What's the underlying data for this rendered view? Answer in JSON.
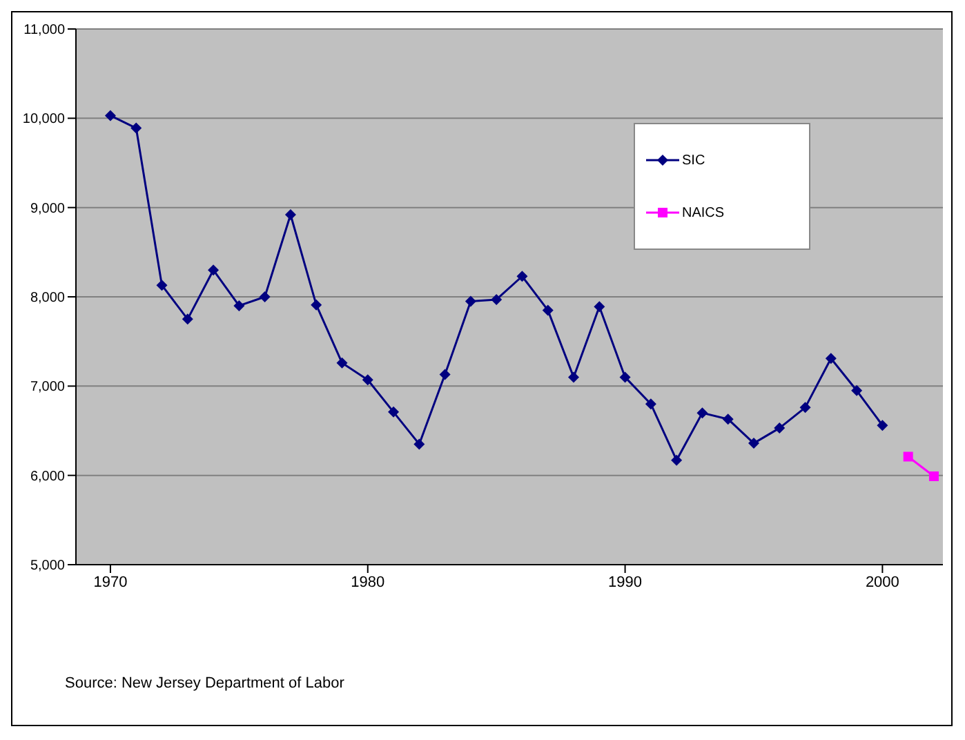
{
  "chart_data": {
    "type": "line",
    "series": [
      {
        "name": "SIC",
        "color": "#000080",
        "marker": "diamond",
        "x": [
          1970,
          1971,
          1972,
          1973,
          1974,
          1975,
          1976,
          1977,
          1978,
          1979,
          1980,
          1981,
          1982,
          1983,
          1984,
          1985,
          1986,
          1987,
          1988,
          1989,
          1990,
          1991,
          1992,
          1993,
          1994,
          1995,
          1996,
          1997,
          1998,
          1999,
          2000
        ],
        "values": [
          10030,
          9890,
          8130,
          7750,
          8300,
          7900,
          8000,
          8920,
          7910,
          7260,
          7070,
          6710,
          6350,
          7130,
          7950,
          7970,
          8230,
          7850,
          7100,
          7890,
          7100,
          6800,
          6170,
          6700,
          6630,
          6360,
          6530,
          6760,
          7310,
          6950,
          6560
        ]
      },
      {
        "name": "NAICS",
        "color": "#ff00ff",
        "marker": "square",
        "x": [
          2001,
          2002
        ],
        "values": [
          6210,
          5990
        ]
      }
    ],
    "xlim": [
      1968.66,
      2002.35
    ],
    "xticks": [
      1970,
      1980,
      1990,
      2000
    ],
    "ylim": [
      5000,
      11000
    ],
    "yticks": [
      {
        "value": 5000,
        "label": "5,000"
      },
      {
        "value": 6000,
        "label": "6,000"
      },
      {
        "value": 7000,
        "label": "7,000"
      },
      {
        "value": 8000,
        "label": "8,000"
      },
      {
        "value": 9000,
        "label": "9,000"
      },
      {
        "value": 10000,
        "label": "10,000"
      },
      {
        "value": 11000,
        "label": "11,000"
      }
    ],
    "grid": "y",
    "legend": "top right",
    "annotations": [
      "Source: New Jersey Department of Labor"
    ]
  }
}
